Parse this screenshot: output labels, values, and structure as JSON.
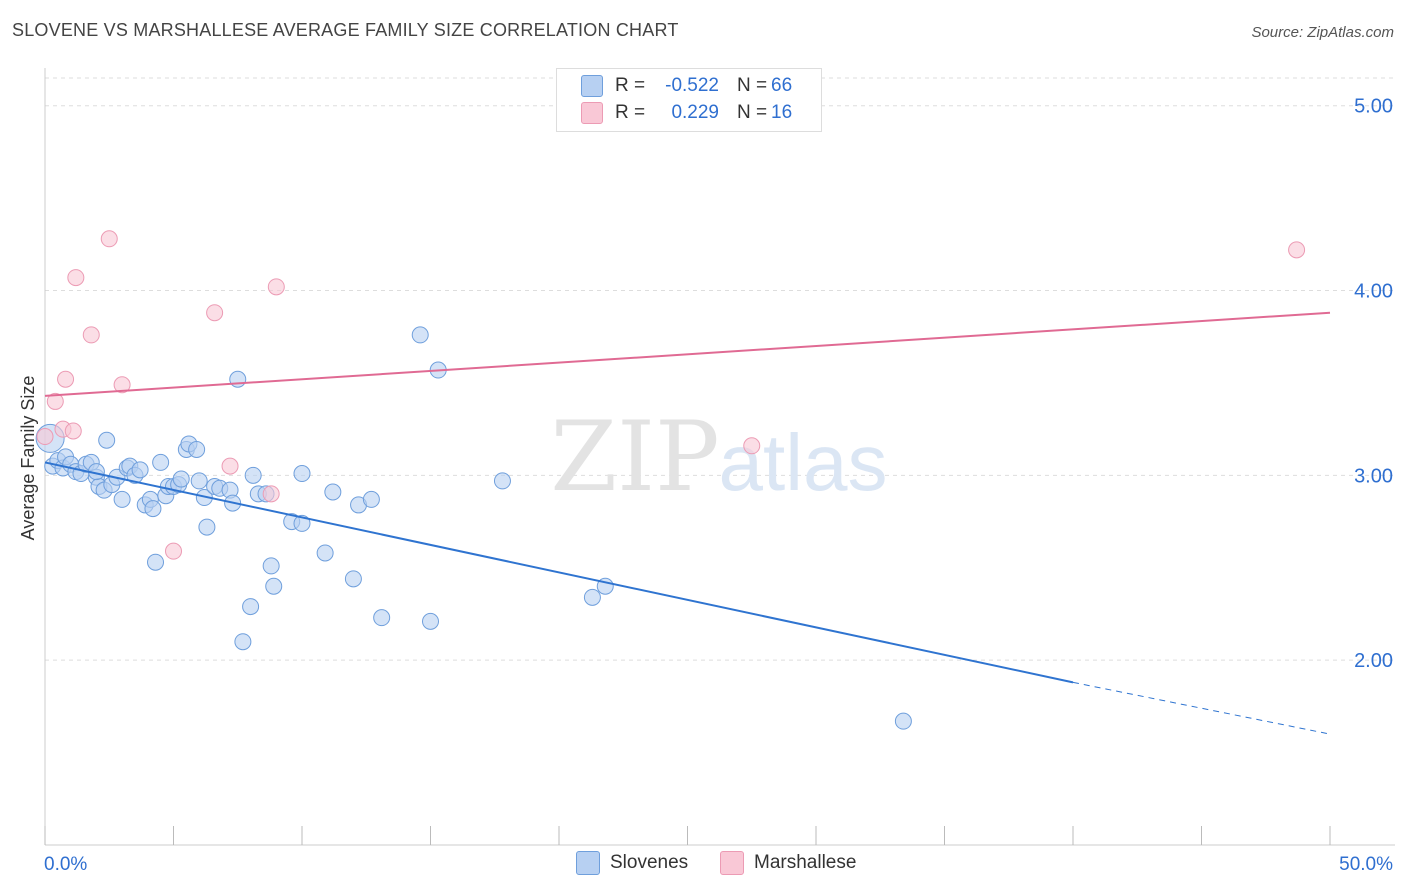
{
  "header": {
    "title": "SLOVENE VS MARSHALLESE AVERAGE FAMILY SIZE CORRELATION CHART",
    "source": "Source: ZipAtlas.com"
  },
  "watermark": {
    "zip": "ZIP",
    "atlas": "atlas"
  },
  "colors": {
    "slovenes_fill": "#b7d0f2",
    "slovenes_stroke": "#6f9fdc",
    "slovenes_line": "#2f74d0",
    "marshallese_fill": "#f9c8d6",
    "marshallese_stroke": "#ec9bb4",
    "marshallese_line": "#e06a93",
    "value_text": "#2f6fd0"
  },
  "legend": {
    "rows": [
      {
        "r_label": "R =",
        "r_value": "-0.522",
        "n_label": "N =",
        "n_value": "66"
      },
      {
        "r_label": "R =",
        "r_value": "0.229",
        "n_label": "N =",
        "n_value": "16"
      }
    ]
  },
  "bottom_legend": {
    "slovenes": "Slovenes",
    "marshallese": "Marshallese"
  },
  "chart_data": {
    "type": "scatter",
    "title": "SLOVENE VS MARSHALLESE AVERAGE FAMILY SIZE CORRELATION CHART",
    "xlabel": "",
    "ylabel": "Average Family Size",
    "xlim": [
      0,
      50
    ],
    "ylim": [
      1.0,
      5.15
    ],
    "x_tick_labels": [
      "0.0%",
      "50.0%"
    ],
    "y_ticks": [
      2.0,
      3.0,
      4.0,
      5.0
    ],
    "y_tick_labels": [
      "2.00",
      "3.00",
      "4.00",
      "5.00"
    ],
    "grid": true,
    "legend_position": "top-center",
    "series": [
      {
        "name": "Slovenes",
        "r": -0.522,
        "n": 66,
        "trend": {
          "x0": 0,
          "y0": 3.07,
          "x1": 40,
          "y1": 1.88,
          "dashed_to_x": 50,
          "dashed_to_y": 1.6
        },
        "points": [
          [
            0.2,
            3.2
          ],
          [
            0.3,
            3.05
          ],
          [
            0.5,
            3.08
          ],
          [
            0.7,
            3.04
          ],
          [
            0.8,
            3.1
          ],
          [
            1.0,
            3.06
          ],
          [
            1.2,
            3.02
          ],
          [
            1.4,
            3.01
          ],
          [
            1.6,
            3.06
          ],
          [
            1.8,
            3.07
          ],
          [
            2.0,
            2.99
          ],
          [
            2.1,
            2.94
          ],
          [
            2.3,
            2.92
          ],
          [
            2.4,
            3.19
          ],
          [
            2.6,
            2.95
          ],
          [
            2.8,
            2.99
          ],
          [
            3.0,
            2.87
          ],
          [
            3.2,
            3.04
          ],
          [
            3.3,
            3.05
          ],
          [
            3.5,
            3.0
          ],
          [
            3.7,
            3.03
          ],
          [
            3.9,
            2.84
          ],
          [
            4.1,
            2.87
          ],
          [
            4.2,
            2.82
          ],
          [
            4.3,
            2.53
          ],
          [
            4.5,
            3.07
          ],
          [
            4.7,
            2.89
          ],
          [
            4.8,
            2.94
          ],
          [
            5.0,
            2.94
          ],
          [
            5.2,
            2.95
          ],
          [
            5.3,
            2.98
          ],
          [
            5.5,
            3.14
          ],
          [
            5.6,
            3.17
          ],
          [
            5.9,
            3.14
          ],
          [
            6.0,
            2.97
          ],
          [
            6.2,
            2.88
          ],
          [
            6.3,
            2.72
          ],
          [
            6.6,
            2.94
          ],
          [
            6.8,
            2.93
          ],
          [
            7.2,
            2.92
          ],
          [
            7.3,
            2.85
          ],
          [
            7.5,
            3.52
          ],
          [
            7.7,
            2.1
          ],
          [
            8.0,
            2.29
          ],
          [
            8.1,
            3.0
          ],
          [
            8.3,
            2.9
          ],
          [
            8.6,
            2.9
          ],
          [
            8.8,
            2.51
          ],
          [
            8.9,
            2.4
          ],
          [
            9.6,
            2.75
          ],
          [
            10.0,
            3.01
          ],
          [
            10.0,
            2.74
          ],
          [
            10.9,
            2.58
          ],
          [
            11.2,
            2.91
          ],
          [
            12.0,
            2.44
          ],
          [
            12.2,
            2.84
          ],
          [
            12.7,
            2.87
          ],
          [
            13.1,
            2.23
          ],
          [
            14.6,
            3.76
          ],
          [
            15.0,
            2.21
          ],
          [
            15.3,
            3.57
          ],
          [
            17.8,
            2.97
          ],
          [
            21.3,
            2.34
          ],
          [
            21.8,
            2.4
          ],
          [
            33.4,
            1.67
          ],
          [
            2.0,
            3.02
          ]
        ]
      },
      {
        "name": "Marshallese",
        "r": 0.229,
        "n": 16,
        "trend": {
          "x0": 0,
          "y0": 3.43,
          "x1": 50,
          "y1": 3.88
        },
        "points": [
          [
            0.0,
            3.21
          ],
          [
            0.4,
            3.4
          ],
          [
            0.7,
            3.25
          ],
          [
            0.8,
            3.52
          ],
          [
            1.1,
            3.24
          ],
          [
            1.2,
            4.07
          ],
          [
            1.8,
            3.76
          ],
          [
            2.5,
            4.28
          ],
          [
            3.0,
            3.49
          ],
          [
            5.0,
            2.59
          ],
          [
            6.6,
            3.88
          ],
          [
            7.2,
            3.05
          ],
          [
            8.8,
            2.9
          ],
          [
            9.0,
            4.02
          ],
          [
            27.5,
            3.16
          ],
          [
            48.7,
            4.22
          ]
        ]
      }
    ]
  }
}
